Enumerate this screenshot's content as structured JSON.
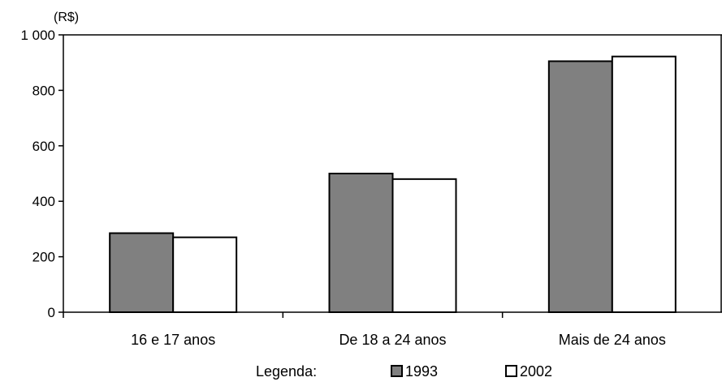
{
  "chart_data": {
    "type": "bar",
    "unit_label": "(R$)",
    "categories": [
      "16 e 17 anos",
      "De 18 a 24 anos",
      "Mais de 24 anos"
    ],
    "series": [
      {
        "name": "1993",
        "values": [
          285,
          500,
          905
        ],
        "color": "#808080"
      },
      {
        "name": "2002",
        "values": [
          270,
          480,
          922
        ],
        "color": "#ffffff"
      }
    ],
    "ylim": [
      0,
      1000
    ],
    "yticks": [
      0,
      200,
      400,
      600,
      800,
      1000
    ],
    "ytick_labels": [
      "0",
      "200",
      "400",
      "600",
      "800",
      "1 000"
    ],
    "grid": false,
    "legend": {
      "title": "Legenda:",
      "placement": "bottom"
    }
  }
}
